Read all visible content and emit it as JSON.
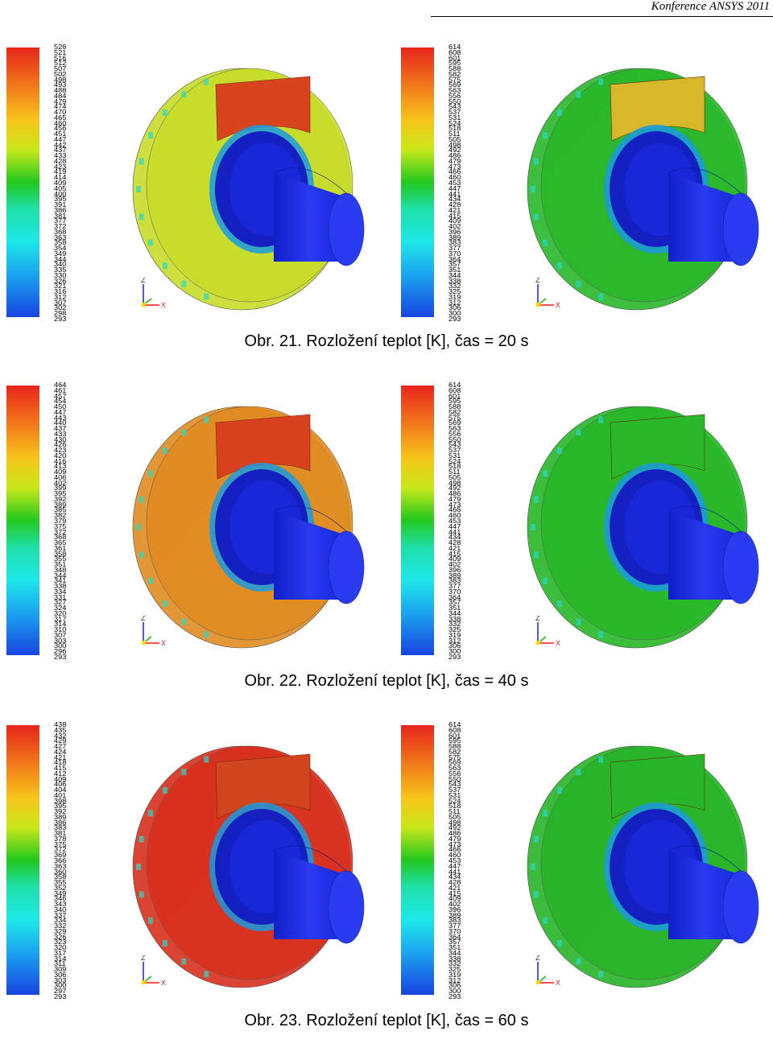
{
  "header": {
    "conference": "Konference ANSYS 2011"
  },
  "figures": [
    {
      "caption": "Obr. 21. Rozložení teplot [K], čas = 20 s",
      "left": {
        "ticks": [
          "526",
          "521",
          "516",
          "512",
          "507",
          "502",
          "498",
          "493",
          "488",
          "484",
          "479",
          "474",
          "470",
          "465",
          "460",
          "456",
          "451",
          "447",
          "442",
          "437",
          "433",
          "428",
          "423",
          "419",
          "414",
          "409",
          "405",
          "400",
          "395",
          "391",
          "386",
          "381",
          "377",
          "372",
          "368",
          "363",
          "358",
          "354",
          "349",
          "344",
          "340",
          "335",
          "330",
          "326",
          "321",
          "316",
          "312",
          "307",
          "302",
          "298",
          "293"
        ],
        "disc_color": "#c8dc2a",
        "pad_color": "#d8441e"
      },
      "right": {
        "ticks": [
          "614",
          "608",
          "601",
          "595",
          "588",
          "582",
          "575",
          "569",
          "563",
          "556",
          "550",
          "543",
          "537",
          "531",
          "524",
          "518",
          "511",
          "505",
          "498",
          "492",
          "486",
          "479",
          "473",
          "466",
          "460",
          "453",
          "447",
          "441",
          "434",
          "428",
          "421",
          "415",
          "409",
          "402",
          "396",
          "389",
          "383",
          "377",
          "370",
          "364",
          "357",
          "351",
          "344",
          "338",
          "332",
          "325",
          "319",
          "312",
          "306",
          "300",
          "293"
        ],
        "disc_color": "#2ab82a",
        "pad_color": "#d8b82a"
      }
    },
    {
      "caption": "Obr. 22. Rozložení teplot [K], čas = 40 s",
      "left": {
        "ticks": [
          "464",
          "461",
          "457",
          "454",
          "450",
          "447",
          "443",
          "440",
          "437",
          "433",
          "430",
          "426",
          "423",
          "420",
          "416",
          "413",
          "409",
          "406",
          "402",
          "399",
          "395",
          "392",
          "389",
          "385",
          "382",
          "379",
          "375",
          "372",
          "368",
          "365",
          "361",
          "358",
          "355",
          "351",
          "348",
          "344",
          "341",
          "338",
          "334",
          "331",
          "327",
          "324",
          "320",
          "317",
          "314",
          "310",
          "307",
          "303",
          "300",
          "296",
          "293"
        ],
        "disc_color": "#e08c22",
        "pad_color": "#d8401e"
      },
      "right": {
        "ticks": [
          "614",
          "608",
          "601",
          "595",
          "588",
          "582",
          "575",
          "569",
          "563",
          "556",
          "550",
          "543",
          "537",
          "531",
          "524",
          "518",
          "511",
          "505",
          "498",
          "492",
          "486",
          "479",
          "473",
          "466",
          "460",
          "453",
          "447",
          "441",
          "434",
          "428",
          "421",
          "415",
          "409",
          "402",
          "396",
          "389",
          "383",
          "377",
          "370",
          "364",
          "357",
          "351",
          "344",
          "338",
          "332",
          "325",
          "319",
          "312",
          "306",
          "300",
          "293"
        ],
        "disc_color": "#28b828",
        "pad_color": "#2ab82a"
      }
    },
    {
      "caption": "Obr. 23. Rozložení teplot [K], čas = 60 s",
      "left": {
        "ticks": [
          "438",
          "435",
          "432",
          "429",
          "427",
          "424",
          "421",
          "418",
          "415",
          "412",
          "409",
          "406",
          "404",
          "401",
          "398",
          "395",
          "392",
          "389",
          "386",
          "383",
          "381",
          "378",
          "375",
          "372",
          "369",
          "366",
          "363",
          "360",
          "358",
          "355",
          "352",
          "349",
          "346",
          "343",
          "340",
          "337",
          "334",
          "332",
          "329",
          "326",
          "323",
          "320",
          "317",
          "314",
          "311",
          "309",
          "306",
          "303",
          "300",
          "297",
          "293"
        ],
        "disc_color": "#d8301e",
        "pad_color": "#d0441e"
      },
      "right": {
        "ticks": [
          "614",
          "608",
          "601",
          "595",
          "588",
          "582",
          "575",
          "569",
          "563",
          "556",
          "550",
          "543",
          "537",
          "531",
          "524",
          "518",
          "511",
          "505",
          "498",
          "492",
          "486",
          "479",
          "473",
          "466",
          "460",
          "453",
          "447",
          "441",
          "434",
          "428",
          "421",
          "415",
          "409",
          "402",
          "396",
          "389",
          "383",
          "377",
          "370",
          "364",
          "357",
          "351",
          "344",
          "338",
          "332",
          "325",
          "319",
          "312",
          "306",
          "300",
          "293"
        ],
        "disc_color": "#28b428",
        "pad_color": "#28b428"
      }
    }
  ],
  "axis_labels": {
    "z": "Z",
    "x": "X"
  }
}
